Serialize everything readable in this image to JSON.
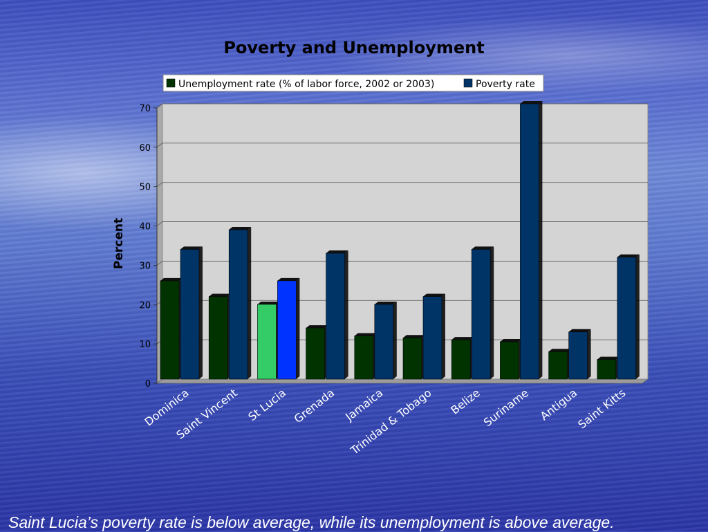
{
  "slide": {
    "caption": "Saint Lucia’s poverty rate is below average, while its unemployment is above average."
  },
  "colors": {
    "unemployment": "#003300",
    "poverty": "#003366",
    "unemployment_highlight": "#33cc66",
    "poverty_highlight": "#0033ff",
    "plot_background": "#d4d4d4"
  },
  "chart_data": {
    "type": "bar",
    "title": "Poverty and Unemployment",
    "ylabel": "Percent",
    "xlabel": "",
    "ylim": [
      0,
      70
    ],
    "yticks": [
      0,
      10,
      20,
      30,
      40,
      50,
      60,
      70
    ],
    "grid": true,
    "legend_position": "top",
    "highlight_category": "St Lucia",
    "categories": [
      "Dominica",
      "Saint Vincent",
      "St Lucia",
      "Grenada",
      "Jamaica",
      "Trinidad & Tobago",
      "Belize",
      "Suriname",
      "Antigua",
      "Saint Kitts"
    ],
    "series": [
      {
        "name": "Unemployment rate (% of labor force, 2002 or 2003)",
        "values": [
          25,
          21,
          19,
          13,
          11,
          10.5,
          10,
          9.5,
          7,
          5
        ]
      },
      {
        "name": "Poverty rate",
        "values": [
          33,
          38,
          25,
          32,
          19,
          21,
          33,
          70,
          12,
          31
        ]
      }
    ]
  }
}
